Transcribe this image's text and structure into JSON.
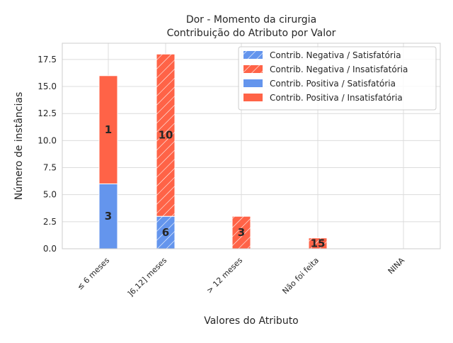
{
  "chart_data": {
    "type": "bar",
    "stacked": true,
    "title": "Dor - Momento da cirurgia",
    "subtitle": "Contribuição do Atributo por Valor",
    "xlabel": "Valores do Atributo",
    "ylabel": "Número de instâncias",
    "categories": [
      "≤ 6 meses",
      "]6,12] meses",
      "> 12 meses",
      "Não foi feita",
      "NINA"
    ],
    "ylim": [
      0,
      19
    ],
    "yticks": [
      "0.0",
      "2.5",
      "5.0",
      "7.5",
      "10.0",
      "12.5",
      "15.0",
      "17.5"
    ],
    "grid": true,
    "legend_position": "top-right",
    "series": [
      {
        "name": "Contrib. Negativa / Satisfatória",
        "color": "#6495ED",
        "hatch": true,
        "values": [
          0,
          3,
          0,
          0,
          0
        ]
      },
      {
        "name": "Contrib. Negativa / Insatisfatória",
        "color": "#FF6347",
        "hatch": true,
        "values": [
          0,
          15,
          3,
          1,
          0
        ]
      },
      {
        "name": "Contrib. Positiva / Satisfatória",
        "color": "#6495ED",
        "hatch": false,
        "values": [
          6,
          0,
          0,
          0,
          0
        ]
      },
      {
        "name": "Contrib. Positiva / Insatisfatória",
        "color": "#FF6347",
        "hatch": false,
        "values": [
          10,
          0,
          0,
          0,
          0
        ]
      }
    ],
    "data_labels": [
      "6",
      "10",
      "3",
      "15",
      "3",
      "1"
    ]
  }
}
